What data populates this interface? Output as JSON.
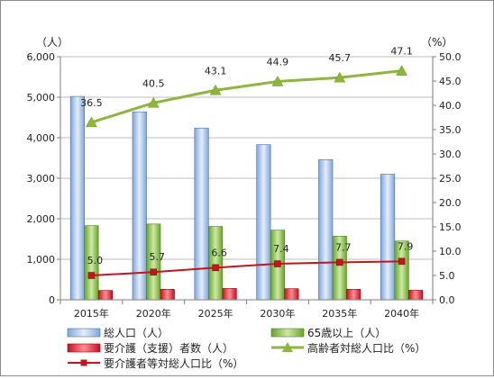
{
  "chart_data": {
    "type": "bar",
    "categories": [
      "2015年",
      "2020年",
      "2025年",
      "2030年",
      "2035年",
      "2040年"
    ],
    "left_axis": {
      "unit": "（人）",
      "ylim": [
        0,
        6000
      ],
      "ticks": [
        "0",
        "1,000",
        "2,000",
        "3,000",
        "4,000",
        "5,000",
        "6,000"
      ]
    },
    "right_axis": {
      "unit": "（%）",
      "ylim": [
        0,
        50
      ],
      "ticks": [
        "0.0",
        "5.0",
        "10.0",
        "15.0",
        "20.0",
        "25.0",
        "30.0",
        "35.0",
        "40.0",
        "45.0",
        "50.0"
      ]
    },
    "series": [
      {
        "name": "総人口（人）",
        "type": "bar",
        "axis": "left",
        "color": "#a8c4ec",
        "values": [
          5020,
          4640,
          4240,
          3830,
          3460,
          3100
        ]
      },
      {
        "name": "65歳以上（人）",
        "type": "bar",
        "axis": "left",
        "color": "#8cc63f",
        "values": [
          1830,
          1870,
          1810,
          1720,
          1570,
          1450
        ]
      },
      {
        "name": "要介護（支援）者数（人）",
        "type": "bar",
        "axis": "left",
        "color": "#e8263a",
        "values": [
          230,
          260,
          280,
          275,
          260,
          235
        ]
      },
      {
        "name": "高齢者対総人口比（%）",
        "type": "line",
        "axis": "right",
        "color": "#8db63c",
        "marker": "triangle",
        "values": [
          36.5,
          40.5,
          43.1,
          44.9,
          45.7,
          47.1
        ],
        "labels": [
          "36.5",
          "40.5",
          "43.1",
          "44.9",
          "45.7",
          "47.1"
        ]
      },
      {
        "name": "要介護者等対総人口比（%）",
        "type": "line",
        "axis": "right",
        "color": "#c0161c",
        "marker": "square",
        "values": [
          5.0,
          5.7,
          6.6,
          7.4,
          7.7,
          7.9
        ],
        "labels": [
          "5.0",
          "5.7",
          "6.6",
          "7.4",
          "7.7",
          "7.9"
        ]
      }
    ],
    "grid": true,
    "legend_position": "bottom"
  }
}
